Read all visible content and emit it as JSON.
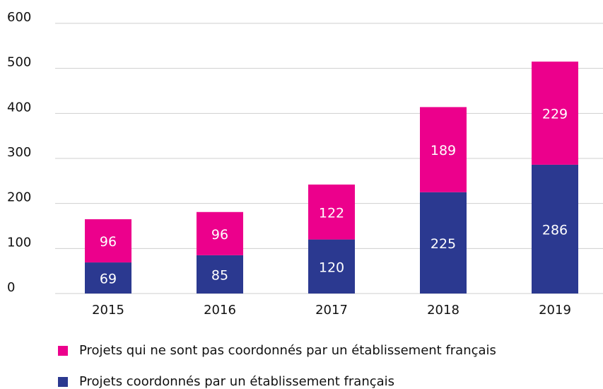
{
  "chart_data": {
    "type": "stacked_bar",
    "categories": [
      "2015",
      "2016",
      "2017",
      "2018",
      "2019"
    ],
    "series": [
      {
        "name": "Projets qui ne sont pas coordonnés par un établissement français",
        "color": "#ec008c",
        "values": [
          96,
          96,
          122,
          189,
          229
        ]
      },
      {
        "name": "Projets coordonnés par un établissement français",
        "color": "#2b3990",
        "values": [
          69,
          85,
          120,
          225,
          286
        ]
      }
    ],
    "ylim": [
      0,
      600
    ],
    "yticks": [
      0,
      100,
      200,
      300,
      400,
      500,
      600
    ],
    "grid": true
  }
}
